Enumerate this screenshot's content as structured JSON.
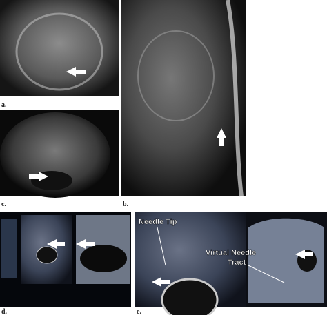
{
  "panels": [
    {
      "label": "a."
    },
    {
      "label": "b."
    },
    {
      "label": "c."
    },
    {
      "label": "d."
    },
    {
      "label": "e."
    }
  ],
  "annotations": {
    "needle_tip": "Needle Tip",
    "virtual_needle_tract": [
      "Virtual Needle",
      "Tract"
    ]
  }
}
